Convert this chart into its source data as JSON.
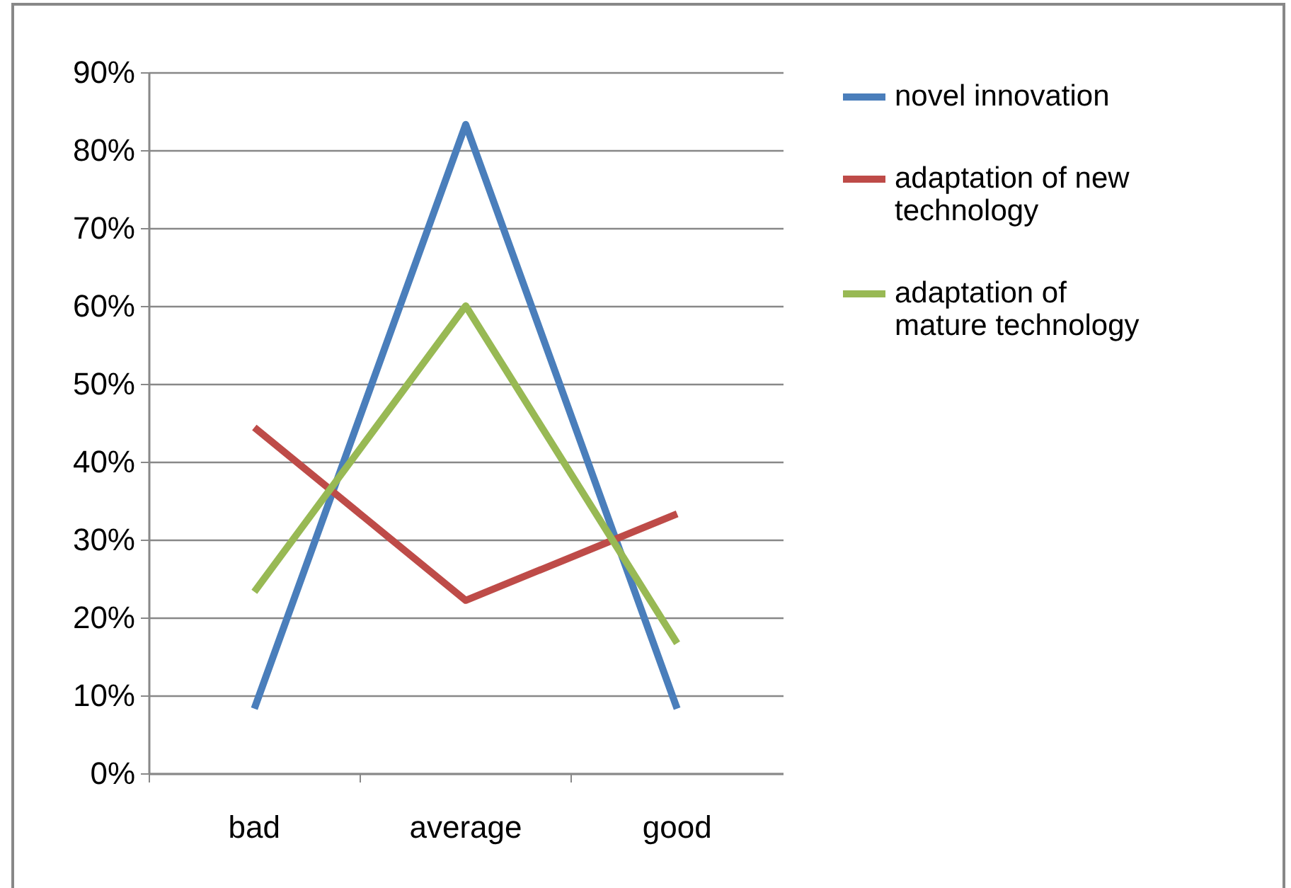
{
  "chart_data": {
    "type": "line",
    "categories": [
      "bad",
      "average",
      "good"
    ],
    "series": [
      {
        "name": "novel innovation",
        "color": "#4a7ebb",
        "values": [
          8.3,
          83.3,
          8.3
        ]
      },
      {
        "name": "adaptation of new technology",
        "color": "#be4b48",
        "values": [
          44.4,
          22.2,
          33.3
        ]
      },
      {
        "name": "adaptation of mature technology",
        "color": "#98b954",
        "values": [
          23.3,
          60,
          16.7
        ]
      }
    ],
    "ylim": [
      0,
      90
    ],
    "yticks": [
      {
        "value": 0,
        "label": "0%"
      },
      {
        "value": 10,
        "label": "10%"
      },
      {
        "value": 20,
        "label": "20%"
      },
      {
        "value": 30,
        "label": "30%"
      },
      {
        "value": 40,
        "label": "40%"
      },
      {
        "value": 50,
        "label": "50%"
      },
      {
        "value": 60,
        "label": "60%"
      },
      {
        "value": 70,
        "label": "70%"
      },
      {
        "value": 80,
        "label": "80%"
      },
      {
        "value": 90,
        "label": "90%"
      }
    ],
    "grid": "y",
    "legend": "right",
    "marker": "none"
  }
}
